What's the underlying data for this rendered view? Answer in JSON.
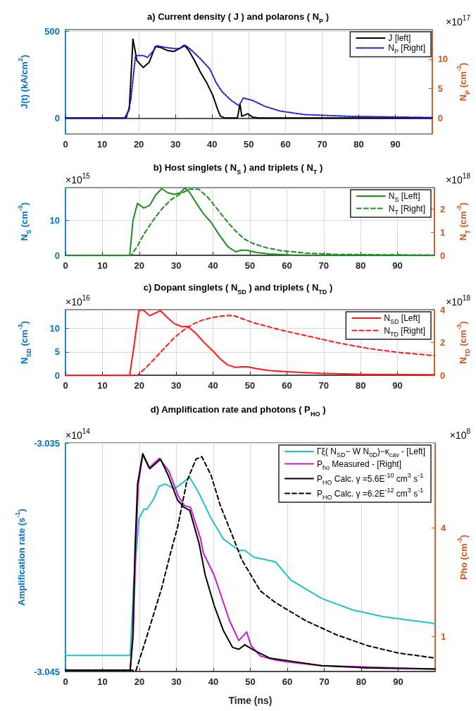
{
  "chart_data": [
    {
      "type": "line",
      "title": "a) Current density ( J ) and polarons ( N$_{P}$ )",
      "ylabel": "J(t) (kA/cm$^{2}$)",
      "y2label": "N$_{P}$ (cm$^{-3}$)",
      "annotations": [
        "×10$^{17}$"
      ],
      "xlim": [
        0,
        100
      ],
      "xticks": [
        0,
        10,
        20,
        30,
        40,
        50,
        60,
        70,
        80,
        90
      ],
      "ylim": [
        -92,
        509
      ],
      "yticks": [
        0,
        500
      ],
      "y2lim": [
        -2.7,
        15
      ],
      "y2ticks": [
        0,
        5,
        10
      ],
      "grid": true,
      "legend": "top right",
      "series": [
        {
          "name": "J [left]",
          "color": "#000000",
          "line_style": "solid",
          "x": [
            0,
            16.2,
            17.4,
            18.4,
            19.5,
            21.2,
            22.8,
            24.5,
            26.1,
            27.8,
            29.5,
            31.1,
            32.4,
            33.6,
            35.3,
            36.9,
            38.6,
            40.2,
            41.5,
            42.3,
            43.6,
            46.9,
            47.6,
            48.1,
            49.8,
            51,
            52.7,
            100
          ],
          "values": [
            0,
            0,
            50,
            454,
            330,
            291,
            320,
            412,
            405,
            389,
            383,
            400,
            419,
            390,
            327,
            260,
            200,
            130,
            50,
            10,
            0,
            0,
            80,
            10,
            25,
            5,
            0,
            0
          ]
        },
        {
          "name": "N$_{P}$ [Right]",
          "color": "#1a1acc",
          "line_style": "dotted",
          "axis": "y2",
          "x": [
            0,
            16.6,
            17.8,
            19.1,
            21.2,
            22.4,
            24.1,
            24.9,
            27,
            29.5,
            31.1,
            32.8,
            34.4,
            36.9,
            39.4,
            41.1,
            42.7,
            45.2,
            47.3,
            48.5,
            51,
            54.4,
            58.5,
            65.1,
            77.6,
            100
          ],
          "values": [
            0,
            0,
            3,
            10.6,
            10.6,
            10.3,
            11.5,
            12.3,
            12,
            11.8,
            11.8,
            12.3,
            11.5,
            10,
            8.3,
            6,
            4.5,
            3,
            2.1,
            3.4,
            3,
            2,
            1.2,
            0.6,
            0.3,
            0.1
          ]
        }
      ]
    },
    {
      "type": "line",
      "title": "b) Host singlets ( N$_{S}$ ) and triplets ( N$_{T}$ )",
      "ylabel": "N$_{S}$ (cm$^{-3}$)",
      "y2label": "N$_{T}$ (cm$^{-3}$)",
      "annotations": [
        "×10$^{15}$",
        "×10$^{18}$"
      ],
      "xlim": [
        0,
        100
      ],
      "xticks": [
        0,
        10,
        20,
        30,
        40,
        50,
        60,
        70,
        80,
        90
      ],
      "ylim": [
        0,
        19.3
      ],
      "yticks": [
        0,
        10
      ],
      "y2lim": [
        0,
        2.92
      ],
      "y2ticks": [
        0,
        1,
        2
      ],
      "grid": true,
      "legend": "top right",
      "series": [
        {
          "name": "N$_{S}$ [Left]",
          "color": "#1e8c1e",
          "line_style": "solid",
          "x": [
            0,
            17.4,
            18.3,
            19.5,
            21.2,
            22.8,
            24.5,
            26.1,
            27.8,
            29.5,
            31.1,
            32.4,
            33.6,
            35.7,
            37.3,
            39.4,
            41.9,
            44,
            46.1,
            47.7,
            49.4,
            51.9,
            55.2,
            61,
            100
          ],
          "values": [
            0,
            0,
            10,
            14.8,
            13.5,
            14.2,
            17.3,
            19,
            17.8,
            17.4,
            17.8,
            19.2,
            18,
            14.5,
            12,
            9.5,
            5.5,
            2.5,
            1,
            1.5,
            1.4,
            0.8,
            0.4,
            0.1,
            0
          ]
        },
        {
          "name": "N$_{T}$ [Right]",
          "color": "#1e8c1e",
          "line_style": "dashed",
          "axis": "y2",
          "x": [
            0,
            17.8,
            19.5,
            21.2,
            23.7,
            26.1,
            28.6,
            31.1,
            33.6,
            36.1,
            38.6,
            41.1,
            43.6,
            46.1,
            48.5,
            51,
            54.4,
            58.5,
            65.1,
            73.4,
            100
          ],
          "values": [
            0,
            0,
            0.4,
            0.9,
            1.5,
            2,
            2.4,
            2.65,
            2.85,
            2.85,
            2.5,
            2,
            1.5,
            1.05,
            0.7,
            0.5,
            0.33,
            0.2,
            0.1,
            0.04,
            0.01
          ]
        }
      ]
    },
    {
      "type": "line",
      "title": "c) Dopant singlets ( N$_{SD}$ ) and triplets ( N$_{TD}$ )",
      "ylabel": "N$_{SD}$ (cm$^{-3}$)",
      "y2label": "N$_{TD}$ (cm$^{-3}$)",
      "annotations": [
        "×10$^{16}$",
        "×10$^{18}$"
      ],
      "xlim": [
        0,
        100
      ],
      "xticks": [
        0,
        10,
        20,
        30,
        40,
        50,
        60,
        70,
        80,
        90
      ],
      "ylim": [
        0,
        14
      ],
      "yticks": [
        0,
        5,
        10
      ],
      "y2lim": [
        0,
        4
      ],
      "y2ticks": [
        0,
        2,
        4
      ],
      "grid": true,
      "legend": "top right",
      "series": [
        {
          "name": "N$_{SD}$ [Left]",
          "color": "#ff1a1a",
          "line_style": "solid",
          "x": [
            0,
            17.4,
            18.7,
            19.9,
            21.2,
            22.8,
            24.1,
            25.7,
            27.4,
            29.5,
            31.5,
            33.2,
            35.3,
            37.8,
            40.2,
            41.9,
            44,
            46.1,
            47.7,
            49.4,
            51.9,
            55.2,
            61,
            69.3,
            81.7,
            100
          ],
          "values": [
            0,
            0,
            7,
            13.9,
            13.9,
            12.7,
            13.2,
            13.8,
            12.5,
            11,
            10.4,
            10.4,
            9,
            6.8,
            5,
            3.5,
            2.2,
            1.7,
            1.8,
            1.8,
            1.4,
            1,
            0.7,
            0.4,
            0.2,
            0.1
          ]
        },
        {
          "name": "N$_{TD}$ [Right]",
          "color": "#ff1a1a",
          "line_style": "dashed",
          "axis": "y2",
          "x": [
            0,
            19.5,
            22,
            24.5,
            27,
            29.5,
            32,
            34.4,
            36.9,
            39.4,
            41.9,
            44.4,
            46.1,
            48.5,
            51,
            54.4,
            58.5,
            63.5,
            68.5,
            73.4,
            81.7,
            90,
            100
          ],
          "values": [
            0,
            0,
            0.5,
            1.1,
            1.7,
            2.3,
            2.75,
            3.1,
            3.35,
            3.5,
            3.6,
            3.65,
            3.6,
            3.4,
            3.2,
            3,
            2.75,
            2.5,
            2.25,
            2,
            1.65,
            1.4,
            1.2
          ]
        }
      ]
    },
    {
      "type": "line",
      "title": "d) Amplification rate and photons ( P$_{HO}$ )",
      "xlabel": "Time (ns)",
      "ylabel": "Amplification rate (s$^{-1}$)",
      "y2label": "Pho (cm$^{-3}$)",
      "annotations": [
        "×10$^{14}$",
        "×10$^{8}$"
      ],
      "xlim": [
        0,
        100
      ],
      "xticks": [
        0,
        10,
        20,
        30,
        40,
        50,
        60,
        70,
        80,
        90
      ],
      "ylim": [
        -3.045,
        -3.035
      ],
      "yticks": [
        -3.045,
        -3.035
      ],
      "y2lim": [
        0.64,
        11.8
      ],
      "y2ticks": [
        1,
        4
      ],
      "log": "y2",
      "grid": true,
      "legend": "top right",
      "series": [
        {
          "name": "Γξ( N$_{SD}$− W N$_{0D}$)−κ$_{cav}$ - [Left]",
          "color": "#1ec3c3",
          "line_style": "solid",
          "x": [
            0,
            17.5,
            18.5,
            19.9,
            21.2,
            22,
            23.7,
            25.3,
            27,
            29.5,
            32,
            33.6,
            36.1,
            39.4,
            42.7,
            46.9,
            48.5,
            51,
            56.8,
            61,
            69.3,
            77.6,
            85.9,
            100
          ],
          "values": [
            -3.0443,
            -3.0443,
            -3.041,
            -3.0383,
            -3.0379,
            -3.0379,
            -3.0375,
            -3.0369,
            -3.0368,
            -3.037,
            -3.0367,
            -3.0365,
            -3.0372,
            -3.0383,
            -3.0392,
            -3.0397,
            -3.0397,
            -3.04,
            -3.0402,
            -3.041,
            -3.0418,
            -3.0423,
            -3.0426,
            -3.0429
          ]
        },
        {
          "name": "P$_{ho}$ Measured - [Right]",
          "color": "#cc1acc",
          "line_style": "solid",
          "axis": "y2",
          "x": [
            0,
            17.5,
            18.3,
            19,
            19.7,
            20.9,
            22.6,
            25.4,
            28,
            30.5,
            32.2,
            33.8,
            36.5,
            37.3,
            40.2,
            41.9,
            44.4,
            46.9,
            49,
            50.2,
            52.7,
            56.8,
            61,
            69.3,
            100
          ],
          "values": [
            0.65,
            0.65,
            1,
            3,
            7,
            10.1,
            8.6,
            9.7,
            8.2,
            6,
            5.3,
            5.2,
            3.5,
            2.9,
            2.19,
            1.73,
            1.22,
            0.95,
            1.06,
            0.89,
            0.78,
            0.74,
            0.72,
            0.69,
            0.66
          ]
        },
        {
          "name": "P$_{HO}$ Calc. γ =5.6E$^{-10}$ cm$^{3}$ s$^{-1}$",
          "color": "#000000",
          "line_style": "solid",
          "axis": "y2",
          "x": [
            0,
            17.5,
            18.2,
            18.8,
            19.5,
            20.9,
            22.8,
            25.7,
            27.8,
            30.3,
            32,
            33.6,
            36.1,
            37.8,
            40.2,
            42.7,
            45.2,
            46.9,
            48.5,
            51,
            55.2,
            61,
            69.3,
            81.7,
            100
          ],
          "values": [
            0.65,
            0.65,
            1,
            3,
            7,
            10.3,
            8.5,
            9.6,
            7.8,
            5.7,
            5.2,
            5,
            3.3,
            2.19,
            1.49,
            1.08,
            0.87,
            0.85,
            0.9,
            0.84,
            0.76,
            0.73,
            0.69,
            0.67,
            0.66
          ]
        },
        {
          "name": "P$_{HO}$ Calc. γ =6.2E$^{-12}$ cm$^{3}$ s$^{-1}$",
          "color": "#000000",
          "line_style": "dashed",
          "axis": "y2",
          "x": [
            0,
            19.1,
            22,
            26.1,
            28.6,
            30.3,
            32.8,
            35.3,
            36.9,
            39.4,
            41.9,
            45.2,
            47.7,
            52.7,
            56.8,
            65.1,
            73.4,
            81.7,
            90,
            100
          ],
          "values": [
            0.65,
            0.65,
            1,
            1.88,
            3,
            4,
            7.2,
            9.6,
            9.9,
            7.8,
            5.3,
            3.6,
            2.66,
            1.79,
            1.54,
            1.22,
            1.02,
            0.89,
            0.81,
            0.76
          ]
        }
      ]
    }
  ]
}
